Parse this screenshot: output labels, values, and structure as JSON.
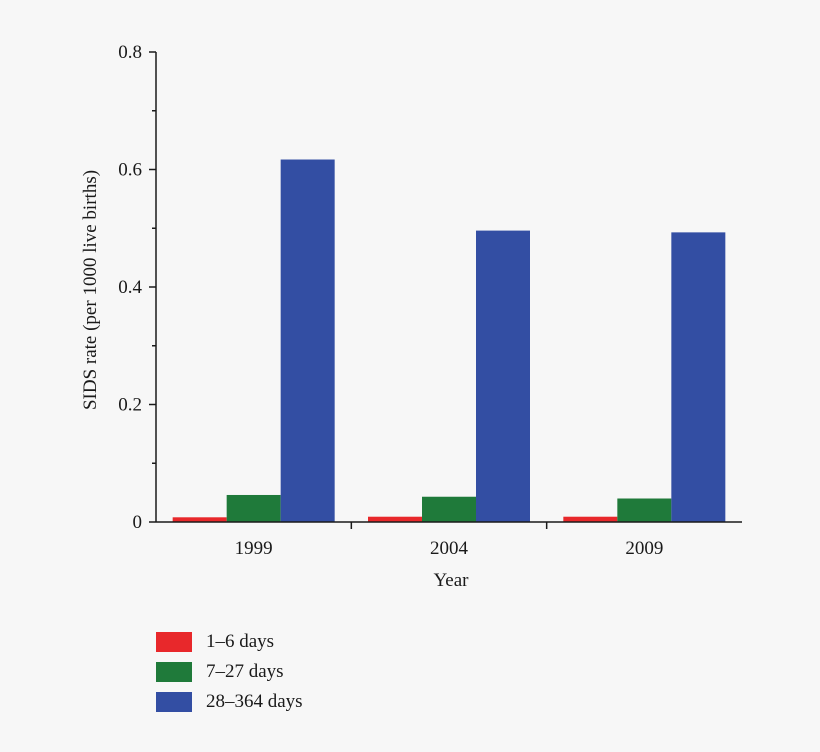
{
  "chart_data": {
    "type": "bar",
    "title": "",
    "xlabel": "Year",
    "ylabel": "SIDS rate (per 1000 live births)",
    "categories": [
      "1999",
      "2004",
      "2009"
    ],
    "ylim": [
      0,
      0.8
    ],
    "yticks": [
      0,
      0.2,
      0.4,
      0.6,
      0.8
    ],
    "ytick_labels": [
      "0",
      "0.2",
      "0.4",
      "0.6",
      "0.8"
    ],
    "grid": false,
    "legend_position": "bottom-left",
    "series": [
      {
        "name": "1–6 days",
        "color": "#e8282b",
        "values": [
          0.008,
          0.009,
          0.009
        ]
      },
      {
        "name": "7–27 days",
        "color": "#1f7a3a",
        "values": [
          0.046,
          0.043,
          0.04
        ]
      },
      {
        "name": "28–364 days",
        "color": "#334ea3",
        "values": [
          0.617,
          0.496,
          0.493
        ]
      }
    ]
  }
}
